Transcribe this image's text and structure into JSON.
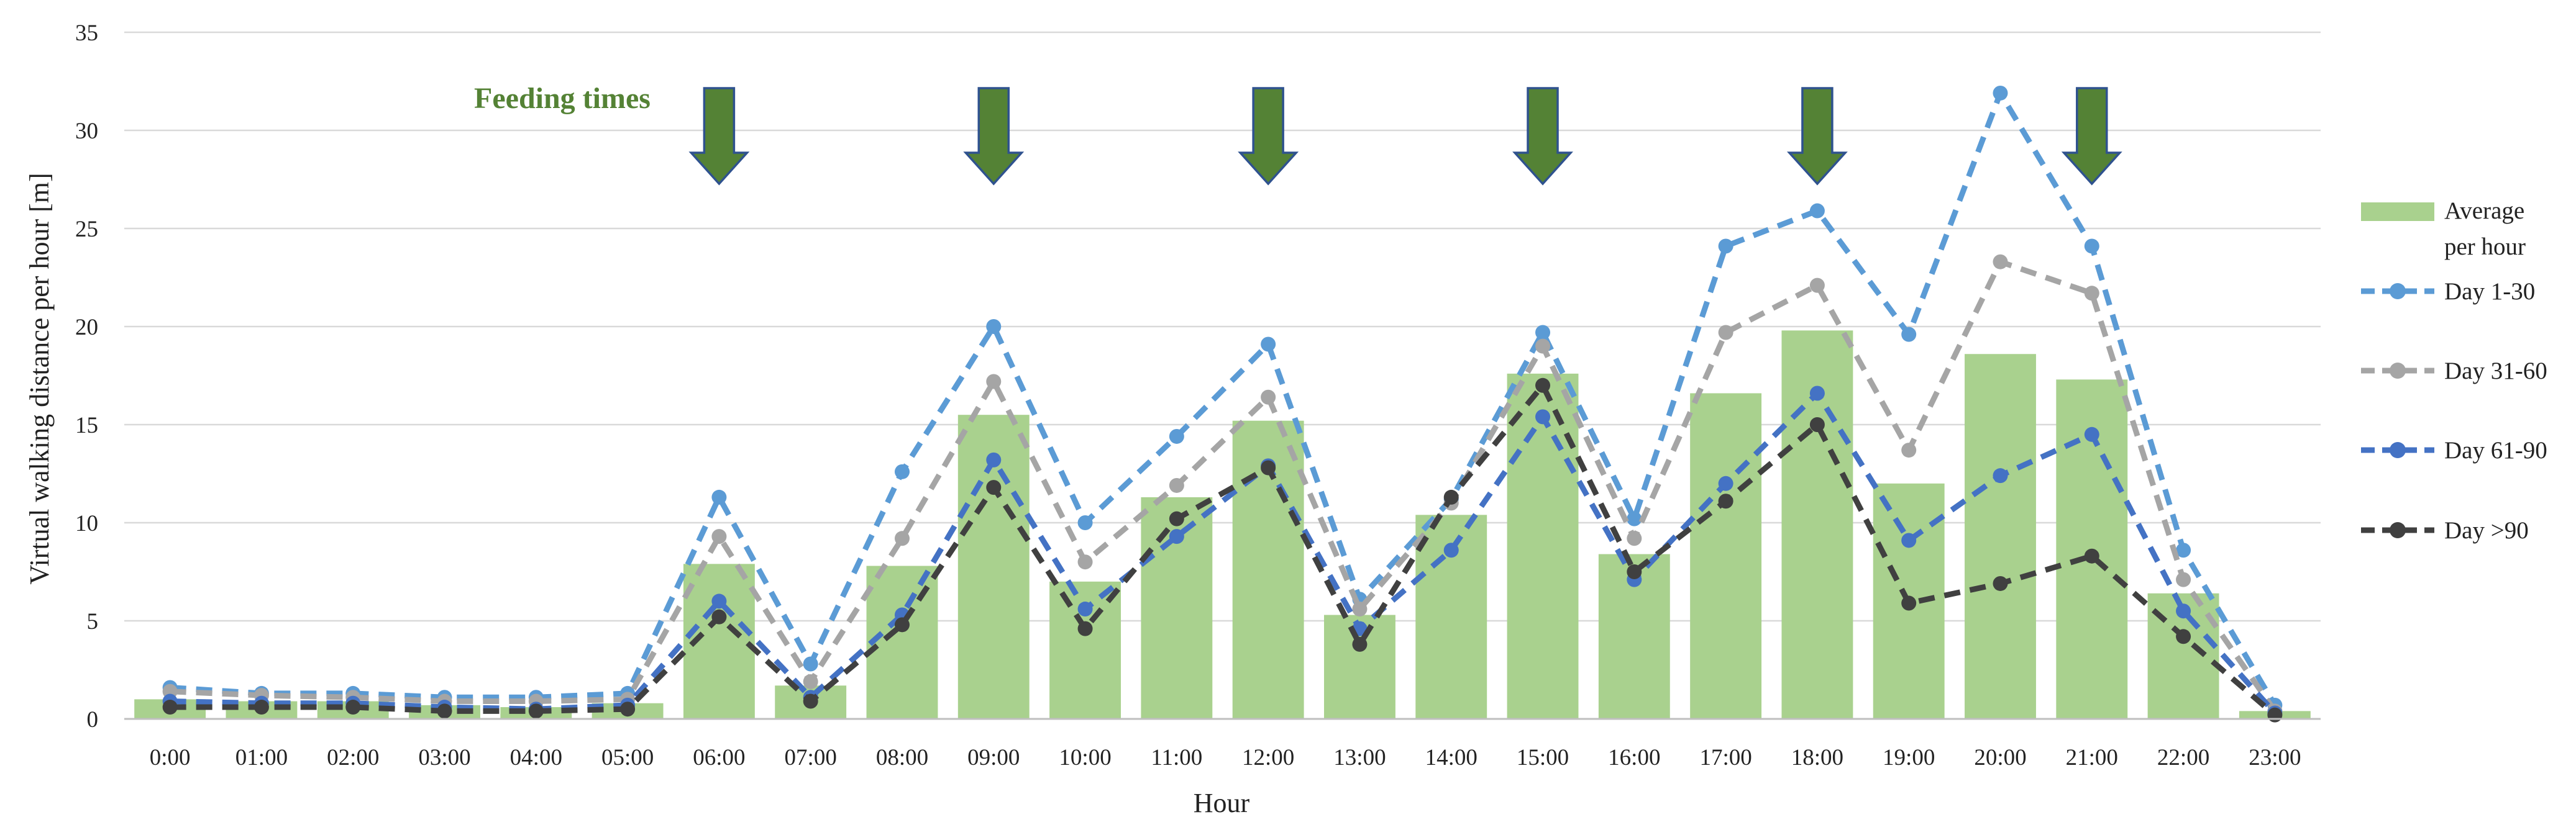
{
  "chart_data": {
    "type": "bar",
    "title": "",
    "xlabel": "Hour",
    "ylabel": "Virtual walking distance per hour [m]",
    "ylim": [
      0,
      35
    ],
    "yticks": [
      0,
      5,
      10,
      15,
      20,
      25,
      30,
      35
    ],
    "grid": "horizontal",
    "legend_position": "right",
    "categories": [
      "0:00",
      "01:00",
      "02:00",
      "03:00",
      "04:00",
      "05:00",
      "06:00",
      "07:00",
      "08:00",
      "09:00",
      "10:00",
      "11:00",
      "12:00",
      "13:00",
      "14:00",
      "15:00",
      "16:00",
      "17:00",
      "18:00",
      "19:00",
      "20:00",
      "21:00",
      "22:00",
      "23:00"
    ],
    "bars": {
      "name": "Average per hour",
      "color": "#a9d18e",
      "values": [
        1.0,
        0.9,
        0.9,
        0.7,
        0.6,
        0.8,
        7.9,
        1.7,
        7.8,
        15.5,
        7.0,
        11.3,
        15.2,
        5.3,
        10.4,
        17.6,
        8.4,
        16.6,
        19.8,
        12.0,
        18.6,
        17.3,
        6.4,
        0.4
      ]
    },
    "series": [
      {
        "name": "Day 1-30",
        "color": "#5b9bd5",
        "values": [
          1.6,
          1.3,
          1.3,
          1.1,
          1.1,
          1.3,
          11.3,
          2.8,
          12.6,
          20.0,
          10.0,
          14.4,
          19.1,
          6.1,
          11.2,
          19.7,
          10.2,
          24.1,
          25.9,
          19.6,
          31.9,
          24.1,
          8.6,
          0.7
        ]
      },
      {
        "name": "Day 31-60",
        "color": "#a5a5a5",
        "values": [
          1.4,
          1.2,
          1.1,
          0.9,
          0.9,
          1.0,
          9.3,
          1.9,
          9.2,
          17.2,
          8.0,
          11.9,
          16.4,
          5.6,
          11.0,
          19.0,
          9.2,
          19.7,
          22.1,
          13.7,
          23.3,
          21.7,
          7.1,
          0.4
        ]
      },
      {
        "name": "Day 61-90",
        "color": "#4472c4",
        "values": [
          0.9,
          0.8,
          0.8,
          0.6,
          0.5,
          0.7,
          6.0,
          1.1,
          5.3,
          13.2,
          5.6,
          9.3,
          12.9,
          4.6,
          8.6,
          15.4,
          7.1,
          12.0,
          16.6,
          9.1,
          12.4,
          14.5,
          5.5,
          0.3
        ]
      },
      {
        "name": "Day >90",
        "color": "#404040",
        "values": [
          0.6,
          0.6,
          0.6,
          0.4,
          0.4,
          0.5,
          5.2,
          0.9,
          4.8,
          11.8,
          4.6,
          10.2,
          12.8,
          3.8,
          11.3,
          17.0,
          7.5,
          11.1,
          15.0,
          5.9,
          6.9,
          8.3,
          4.2,
          0.2
        ]
      }
    ],
    "annotation": {
      "text": "Feeding times",
      "color": "#548235",
      "arrow_fill": "#548235",
      "arrow_stroke": "#2f528f",
      "arrow_hours": [
        "06:00",
        "09:00",
        "12:00",
        "15:00",
        "18:00",
        "21:00"
      ]
    },
    "legend": [
      "Average per hour",
      "Day 1-30",
      "Day 31-60",
      "Day 61-90",
      "Day >90"
    ]
  }
}
